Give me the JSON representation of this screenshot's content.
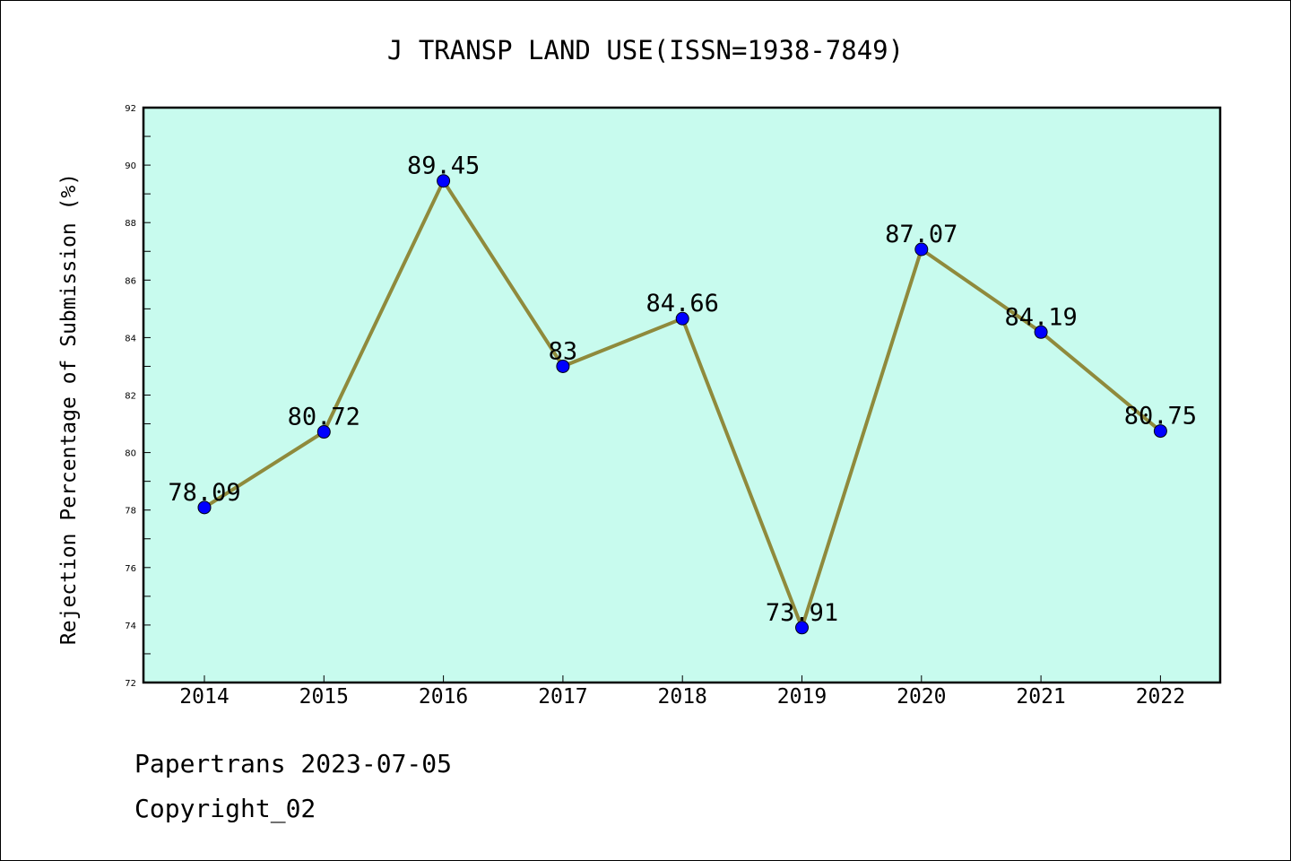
{
  "chart_data": {
    "type": "line",
    "title": "J TRANSP LAND USE(ISSN=1938-7849)",
    "xlabel": "",
    "ylabel": "Rejection Percentage of Submission (%)",
    "categories": [
      "2014",
      "2015",
      "2016",
      "2017",
      "2018",
      "2019",
      "2020",
      "2021",
      "2022"
    ],
    "series": [
      {
        "values": [
          78.09,
          80.72,
          89.45,
          83,
          84.66,
          73.91,
          87.07,
          84.19,
          80.75
        ]
      }
    ],
    "data_labels": [
      "78.09",
      "80.72",
      "89.45",
      "83",
      "84.66",
      "73.91",
      "87.07",
      "84.19",
      "80.75"
    ],
    "ylim": [
      72,
      92
    ],
    "y_ticks": [
      "72",
      "74",
      "76",
      "78",
      "80",
      "82",
      "84",
      "86",
      "88",
      "90",
      "92"
    ],
    "grid": false,
    "colors": {
      "plot_background": "#c8fbee",
      "line": "#8f8a3c",
      "marker": "#0000ff"
    }
  },
  "footer": {
    "line1": "Papertrans 2023-07-05",
    "line2": "Copyright_02"
  }
}
